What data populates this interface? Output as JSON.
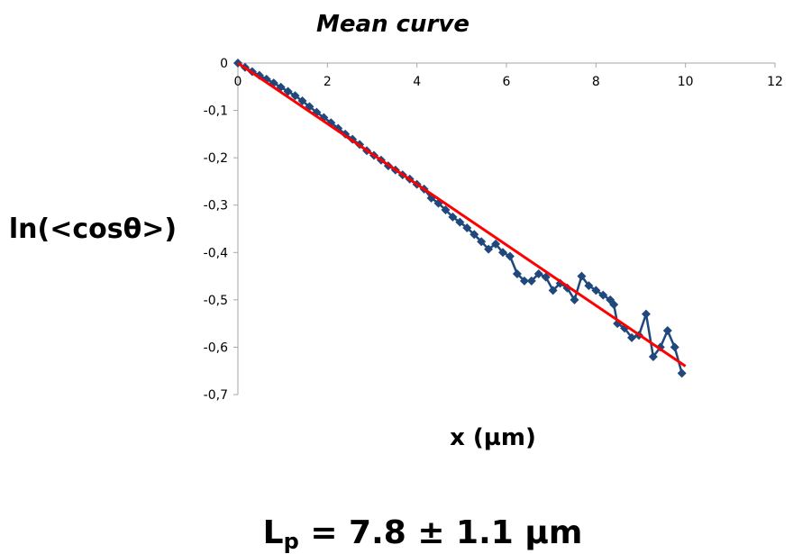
{
  "chart_data": {
    "type": "scatter",
    "title": "Mean curve",
    "xlabel": "x (µm)",
    "ylabel": "ln(<cosθ>)",
    "xlim": [
      0,
      12
    ],
    "ylim": [
      -0.7,
      0
    ],
    "x_ticks": [
      0,
      2,
      4,
      6,
      8,
      10,
      12
    ],
    "y_ticks": [
      0,
      -0.1,
      -0.2,
      -0.3,
      -0.4,
      -0.5,
      -0.6,
      -0.7
    ],
    "x_tick_labels": [
      "0",
      "2",
      "4",
      "6",
      "8",
      "10",
      "12"
    ],
    "y_tick_labels": [
      "0",
      "-0,1",
      "-0,2",
      "-0,3",
      "-0,4",
      "-0,5",
      "-0,6",
      "-0,7"
    ],
    "series": [
      {
        "name": "data",
        "color": "#1F497D",
        "marker": "diamond",
        "points": [
          [
            0.0,
            0.0
          ],
          [
            0.16,
            -0.009
          ],
          [
            0.32,
            -0.018
          ],
          [
            0.48,
            -0.026
          ],
          [
            0.64,
            -0.034
          ],
          [
            0.8,
            -0.042
          ],
          [
            0.96,
            -0.051
          ],
          [
            1.12,
            -0.06
          ],
          [
            1.28,
            -0.069
          ],
          [
            1.44,
            -0.08
          ],
          [
            1.6,
            -0.092
          ],
          [
            1.76,
            -0.104
          ],
          [
            1.92,
            -0.115
          ],
          [
            2.08,
            -0.126
          ],
          [
            2.24,
            -0.138
          ],
          [
            2.4,
            -0.15
          ],
          [
            2.56,
            -0.161
          ],
          [
            2.72,
            -0.172
          ],
          [
            2.88,
            -0.185
          ],
          [
            3.04,
            -0.195
          ],
          [
            3.2,
            -0.205
          ],
          [
            3.36,
            -0.217
          ],
          [
            3.52,
            -0.226
          ],
          [
            3.68,
            -0.236
          ],
          [
            3.84,
            -0.245
          ],
          [
            4.0,
            -0.256
          ],
          [
            4.16,
            -0.266
          ],
          [
            4.32,
            -0.285
          ],
          [
            4.48,
            -0.296
          ],
          [
            4.64,
            -0.31
          ],
          [
            4.8,
            -0.325
          ],
          [
            4.96,
            -0.336
          ],
          [
            5.12,
            -0.348
          ],
          [
            5.28,
            -0.362
          ],
          [
            5.44,
            -0.377
          ],
          [
            5.6,
            -0.393
          ],
          [
            5.76,
            -0.382
          ],
          [
            5.92,
            -0.4
          ],
          [
            6.08,
            -0.408
          ],
          [
            6.24,
            -0.445
          ],
          [
            6.4,
            -0.46
          ],
          [
            6.56,
            -0.46
          ],
          [
            6.72,
            -0.445
          ],
          [
            6.88,
            -0.452
          ],
          [
            7.04,
            -0.48
          ],
          [
            7.2,
            -0.465
          ],
          [
            7.36,
            -0.475
          ],
          [
            7.52,
            -0.5
          ],
          [
            7.68,
            -0.45
          ],
          [
            7.84,
            -0.47
          ],
          [
            8.0,
            -0.48
          ],
          [
            8.16,
            -0.49
          ],
          [
            8.32,
            -0.5
          ],
          [
            8.4,
            -0.51
          ],
          [
            8.48,
            -0.55
          ],
          [
            8.64,
            -0.56
          ],
          [
            8.8,
            -0.58
          ],
          [
            8.96,
            -0.575
          ],
          [
            9.12,
            -0.53
          ],
          [
            9.28,
            -0.62
          ],
          [
            9.44,
            -0.6
          ],
          [
            9.6,
            -0.565
          ],
          [
            9.76,
            -0.6
          ],
          [
            9.92,
            -0.655
          ]
        ]
      },
      {
        "name": "fit",
        "color": "#FF0000",
        "line_points": [
          [
            0,
            0
          ],
          [
            10,
            -0.64
          ]
        ]
      }
    ]
  },
  "annotation": {
    "lp_symbol": "L",
    "lp_subscript": "p",
    "lp_value": " = 7.8 ± 1.1 µm"
  }
}
